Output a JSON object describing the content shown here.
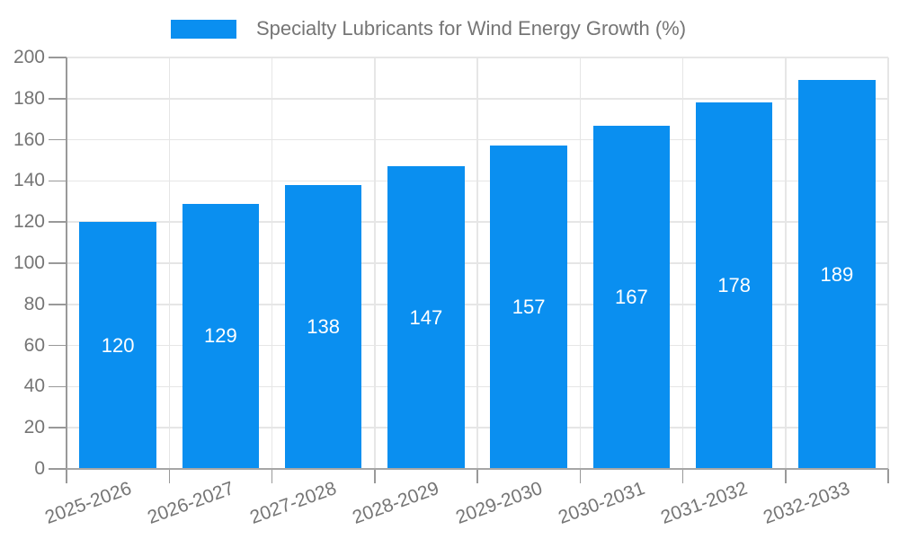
{
  "colors": {
    "bar": "#0a8ff0",
    "grid": "#e6e6e6",
    "axis": "#999999",
    "tick_text": "#757575",
    "value_label": "#ffffff",
    "background": "#ffffff"
  },
  "legend": {
    "label": "Specialty Lubricants for Wind Energy Growth (%)"
  },
  "chart_data": {
    "type": "bar",
    "title": "Specialty Lubricants for Wind Energy Growth (%)",
    "categories": [
      "2025-2026",
      "2026-2027",
      "2027-2028",
      "2028-2029",
      "2029-2030",
      "2030-2031",
      "2031-2032",
      "2032-2033"
    ],
    "values": [
      120,
      129,
      138,
      147,
      157,
      167,
      178,
      189
    ],
    "xlabel": "",
    "ylabel": "",
    "ylim": [
      0,
      200
    ],
    "ytick_step": 20,
    "yticks": [
      0,
      20,
      40,
      60,
      80,
      100,
      120,
      140,
      160,
      180,
      200
    ],
    "grid": true,
    "legend_position": "top",
    "bar_labels": "inside-center",
    "x_tick_rotation_deg": 20
  }
}
